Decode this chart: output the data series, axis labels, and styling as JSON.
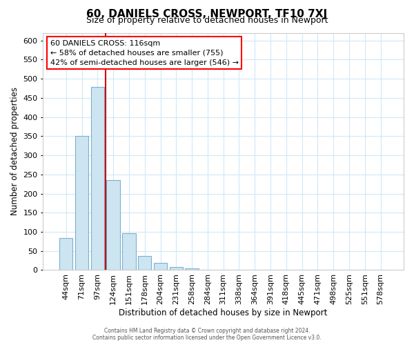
{
  "title": "60, DANIELS CROSS, NEWPORT, TF10 7XJ",
  "subtitle": "Size of property relative to detached houses in Newport",
  "xlabel": "Distribution of detached houses by size in Newport",
  "ylabel": "Number of detached properties",
  "bar_labels": [
    "44sqm",
    "71sqm",
    "97sqm",
    "124sqm",
    "151sqm",
    "178sqm",
    "204sqm",
    "231sqm",
    "258sqm",
    "284sqm",
    "311sqm",
    "338sqm",
    "364sqm",
    "391sqm",
    "418sqm",
    "445sqm",
    "471sqm",
    "498sqm",
    "525sqm",
    "551sqm",
    "578sqm"
  ],
  "bar_values": [
    83,
    350,
    478,
    235,
    97,
    37,
    19,
    8,
    5,
    0,
    0,
    0,
    0,
    1,
    0,
    0,
    0,
    0,
    0,
    0,
    1
  ],
  "bar_color": "#cce5f0",
  "bar_edge_color": "#7bafd4",
  "vline_color": "#cc0000",
  "annotation_title": "60 DANIELS CROSS: 116sqm",
  "annotation_line1": "← 58% of detached houses are smaller (755)",
  "annotation_line2": "42% of semi-detached houses are larger (546) →",
  "ylim": [
    0,
    620
  ],
  "yticks": [
    0,
    50,
    100,
    150,
    200,
    250,
    300,
    350,
    400,
    450,
    500,
    550,
    600
  ],
  "grid_color": "#d0e8f5",
  "footer1": "Contains HM Land Registry data © Crown copyright and database right 2024.",
  "footer2": "Contains public sector information licensed under the Open Government Licence v3.0."
}
